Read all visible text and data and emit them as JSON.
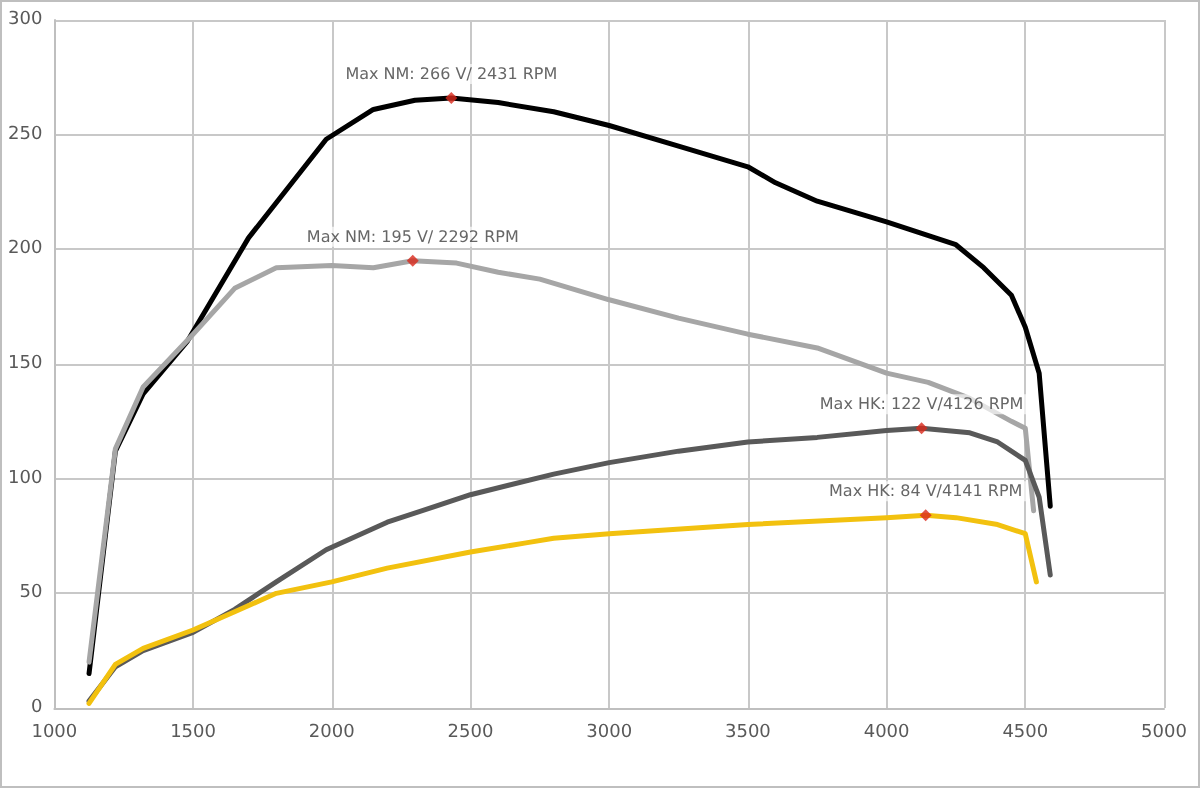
{
  "chart_data": {
    "type": "line",
    "xlim": [
      1000,
      5000
    ],
    "xticks": [
      1000,
      1500,
      2000,
      2500,
      3000,
      3500,
      4000,
      4500,
      5000
    ],
    "ylim": [
      0,
      300
    ],
    "yticks": [
      0,
      50,
      100,
      150,
      200,
      250,
      300
    ],
    "grid": true,
    "marker": "none",
    "line_style": "solid",
    "series": [
      {
        "color": "#000000",
        "x": [
          1125,
          1220,
          1320,
          1480,
          1700,
          1980,
          2150,
          2300,
          2431,
          2600,
          2800,
          3000,
          3250,
          3500,
          3600,
          3750,
          4000,
          4250,
          4350,
          4450,
          4500,
          4550,
          4590
        ],
        "values": [
          15,
          112,
          137,
          160,
          205,
          248,
          261,
          265,
          266,
          264,
          260,
          254,
          245,
          236,
          229,
          221,
          212,
          202,
          192,
          180,
          166,
          146,
          88
        ]
      },
      {
        "color": "#a6a6a6",
        "x": [
          1125,
          1220,
          1320,
          1500,
          1650,
          1800,
          2000,
          2150,
          2292,
          2450,
          2600,
          2750,
          3000,
          3250,
          3500,
          3750,
          4000,
          4150,
          4300,
          4450,
          4500,
          4530
        ],
        "values": [
          20,
          113,
          140,
          163,
          183,
          192,
          193,
          192,
          195,
          194,
          190,
          187,
          178,
          170,
          163,
          157,
          146,
          142,
          135,
          125,
          122,
          86
        ]
      },
      {
        "color": "#595959",
        "x": [
          1125,
          1220,
          1320,
          1500,
          1650,
          1800,
          1980,
          2200,
          2500,
          2800,
          3000,
          3250,
          3500,
          3750,
          4000,
          4126,
          4300,
          4400,
          4500,
          4550,
          4590
        ],
        "values": [
          3,
          18,
          25,
          33,
          43,
          55,
          69,
          81,
          93,
          102,
          107,
          112,
          116,
          118,
          121,
          122,
          120,
          116,
          108,
          92,
          58
        ]
      },
      {
        "color": "#f2c10f",
        "x": [
          1125,
          1220,
          1320,
          1500,
          1650,
          1800,
          2000,
          2200,
          2500,
          2700,
          2800,
          3000,
          3500,
          4000,
          4141,
          4250,
          4400,
          4500,
          4540
        ],
        "values": [
          2,
          19,
          26,
          34,
          42,
          50,
          55,
          61,
          68,
          72,
          74,
          76,
          80,
          83,
          84,
          83,
          80,
          76,
          55
        ]
      }
    ],
    "annotations": [
      {
        "text": "Max NM: 266 V/ 2431 RPM",
        "x": 2431,
        "y": 266
      },
      {
        "text": "Max NM: 195 V/ 2292 RPM",
        "x": 2292,
        "y": 195
      },
      {
        "text": "Max HK: 122 V/4126 RPM",
        "x": 4126,
        "y": 122
      },
      {
        "text": "Max HK: 84 V/4141 RPM",
        "x": 4141,
        "y": 84
      }
    ]
  }
}
